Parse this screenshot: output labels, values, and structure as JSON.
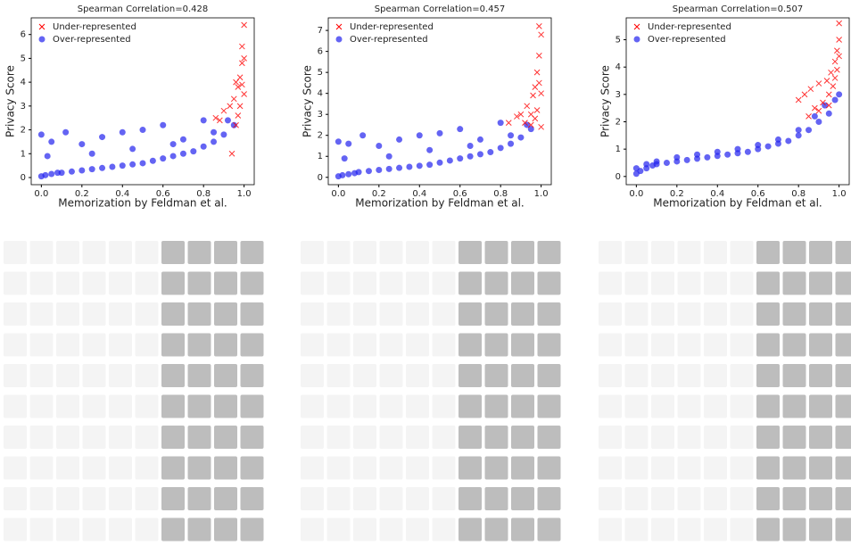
{
  "chart_data": [
    {
      "type": "scatter",
      "title": "Spearman Correlation=0.428",
      "xlabel": "Memorization by Feldman et al.",
      "ylabel": "Privacy Score",
      "xlim": [
        -0.05,
        1.05
      ],
      "ylim": [
        -0.3,
        6.7
      ],
      "xticks": [
        {
          "value": 0,
          "label": "0.0"
        },
        0.2,
        0.4,
        0.6,
        0.8,
        {
          "value": 1,
          "label": "1.0"
        }
      ],
      "yticks": [
        0,
        1,
        2,
        3,
        4,
        5,
        6
      ],
      "legend": "upper left",
      "series": [
        {
          "name": "Under-represented",
          "color": "#ff0000",
          "marker": "x",
          "x": [
            0.86,
            0.9,
            0.93,
            0.95,
            0.96,
            0.97,
            0.98,
            0.98,
            0.99,
            0.99,
            1.0,
            1.0,
            1.0,
            0.94,
            0.97,
            0.88,
            0.96,
            0.99
          ],
          "y": [
            2.5,
            2.8,
            3.0,
            3.3,
            2.2,
            3.8,
            4.2,
            3.0,
            4.8,
            5.5,
            6.4,
            5.0,
            3.5,
            1.0,
            2.6,
            2.4,
            4.0,
            3.9
          ]
        },
        {
          "name": "Over-represented",
          "color": "#2222ee",
          "marker": "o",
          "x": [
            0.0,
            0.02,
            0.05,
            0.08,
            0.1,
            0.15,
            0.2,
            0.25,
            0.3,
            0.35,
            0.4,
            0.45,
            0.5,
            0.55,
            0.6,
            0.65,
            0.7,
            0.75,
            0.8,
            0.85,
            0.9,
            0.95,
            0.0,
            0.05,
            0.12,
            0.2,
            0.3,
            0.4,
            0.5,
            0.6,
            0.7,
            0.8,
            0.03,
            0.25,
            0.45,
            0.65,
            0.85,
            0.92
          ],
          "y": [
            0.05,
            0.1,
            0.15,
            0.2,
            0.2,
            0.25,
            0.3,
            0.35,
            0.4,
            0.45,
            0.5,
            0.55,
            0.6,
            0.7,
            0.8,
            0.9,
            1.0,
            1.1,
            1.3,
            1.5,
            1.8,
            2.2,
            1.8,
            1.5,
            1.9,
            1.4,
            1.7,
            1.9,
            2.0,
            2.2,
            1.6,
            2.4,
            0.9,
            1.0,
            1.2,
            1.4,
            1.9,
            2.4
          ]
        }
      ]
    },
    {
      "type": "scatter",
      "title": "Spearman Correlation=0.457",
      "xlabel": "Memorization by Feldman et al.",
      "ylabel": "Privacy Score",
      "xlim": [
        -0.05,
        1.05
      ],
      "ylim": [
        -0.35,
        7.6
      ],
      "xticks": [
        {
          "value": 0,
          "label": "0.0"
        },
        0.2,
        0.4,
        0.6,
        0.8,
        {
          "value": 1,
          "label": "1.0"
        }
      ],
      "yticks": [
        0,
        1,
        2,
        3,
        4,
        5,
        6,
        7
      ],
      "legend": "upper left",
      "series": [
        {
          "name": "Under-represented",
          "color": "#ff0000",
          "marker": "x",
          "x": [
            0.84,
            0.88,
            0.9,
            0.93,
            0.95,
            0.96,
            0.97,
            0.98,
            0.98,
            0.99,
            0.99,
            1.0,
            1.0,
            1.0,
            0.95,
            0.97,
            0.92,
            0.99
          ],
          "y": [
            2.6,
            2.9,
            3.0,
            3.4,
            2.5,
            3.9,
            4.3,
            3.2,
            5.0,
            5.8,
            7.2,
            6.8,
            4.0,
            2.4,
            3.0,
            2.8,
            2.6,
            4.5
          ]
        },
        {
          "name": "Over-represented",
          "color": "#2222ee",
          "marker": "o",
          "x": [
            0.0,
            0.02,
            0.05,
            0.08,
            0.1,
            0.15,
            0.2,
            0.25,
            0.3,
            0.35,
            0.4,
            0.45,
            0.5,
            0.55,
            0.6,
            0.65,
            0.7,
            0.75,
            0.8,
            0.85,
            0.9,
            0.95,
            0.0,
            0.05,
            0.12,
            0.2,
            0.3,
            0.4,
            0.5,
            0.6,
            0.7,
            0.8,
            0.03,
            0.25,
            0.45,
            0.65,
            0.85,
            0.93
          ],
          "y": [
            0.05,
            0.1,
            0.15,
            0.2,
            0.25,
            0.3,
            0.35,
            0.4,
            0.45,
            0.5,
            0.55,
            0.6,
            0.7,
            0.8,
            0.9,
            1.0,
            1.1,
            1.2,
            1.4,
            1.6,
            1.9,
            2.3,
            1.7,
            1.6,
            2.0,
            1.5,
            1.8,
            2.0,
            2.1,
            2.3,
            1.8,
            2.6,
            0.9,
            1.0,
            1.3,
            1.5,
            2.0,
            2.5
          ]
        }
      ]
    },
    {
      "type": "scatter",
      "title": "Spearman Correlation=0.507",
      "xlabel": "Memorization by Feldman et al.",
      "ylabel": "Privacy Score",
      "xlim": [
        -0.05,
        1.05
      ],
      "ylim": [
        -0.3,
        5.8
      ],
      "xticks": [
        {
          "value": 0,
          "label": "0.0"
        },
        0.2,
        0.4,
        0.6,
        0.8,
        {
          "value": 1,
          "label": "1.0"
        }
      ],
      "yticks": [
        0,
        1,
        2,
        3,
        4,
        5
      ],
      "legend": "upper left",
      "series": [
        {
          "name": "Under-represented",
          "color": "#ff0000",
          "marker": "x",
          "x": [
            0.8,
            0.83,
            0.86,
            0.88,
            0.9,
            0.92,
            0.94,
            0.95,
            0.96,
            0.97,
            0.98,
            0.98,
            0.99,
            0.99,
            1.0,
            1.0,
            1.0,
            0.85,
            0.9,
            0.95
          ],
          "y": [
            2.8,
            3.0,
            3.2,
            2.5,
            3.4,
            2.7,
            3.5,
            3.0,
            3.8,
            3.3,
            4.2,
            3.6,
            4.6,
            3.9,
            5.6,
            5.0,
            4.4,
            2.2,
            2.4,
            2.6
          ]
        },
        {
          "name": "Over-represented",
          "color": "#2222ee",
          "marker": "o",
          "x": [
            0.0,
            0.02,
            0.05,
            0.08,
            0.1,
            0.15,
            0.2,
            0.25,
            0.3,
            0.35,
            0.4,
            0.45,
            0.5,
            0.55,
            0.6,
            0.65,
            0.7,
            0.75,
            0.8,
            0.85,
            0.9,
            0.95,
            0.98,
            1.0,
            0.0,
            0.05,
            0.1,
            0.2,
            0.3,
            0.4,
            0.5,
            0.6,
            0.7,
            0.8,
            0.88,
            0.93
          ],
          "y": [
            0.1,
            0.2,
            0.3,
            0.4,
            0.45,
            0.5,
            0.55,
            0.6,
            0.65,
            0.7,
            0.75,
            0.8,
            0.85,
            0.9,
            1.0,
            1.1,
            1.2,
            1.3,
            1.5,
            1.7,
            2.0,
            2.3,
            2.8,
            3.0,
            0.3,
            0.45,
            0.55,
            0.7,
            0.8,
            0.9,
            1.0,
            1.15,
            1.35,
            1.7,
            2.2,
            2.6
          ]
        }
      ]
    }
  ]
}
